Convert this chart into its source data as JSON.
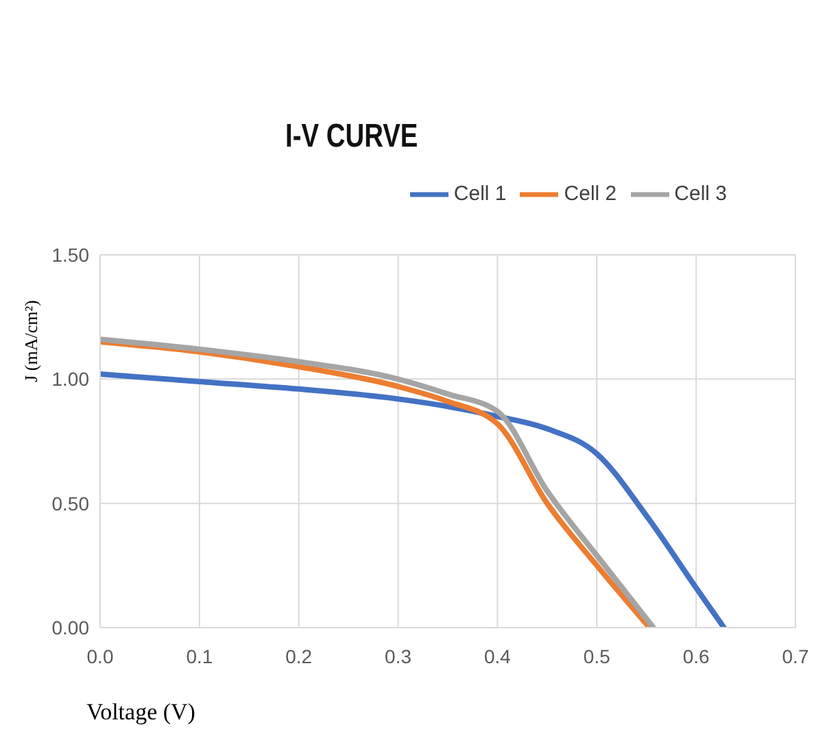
{
  "chart_data": {
    "type": "line",
    "title": "I-V CURVE",
    "xlabel": "Voltage (V)",
    "ylabel": "J (mA/cm²)",
    "series": [
      {
        "name": "Cell 1",
        "color": "#4472c4",
        "x": [
          0,
          0.1,
          0.2,
          0.3,
          0.35,
          0.4,
          0.45,
          0.5,
          0.55,
          0.6,
          0.628
        ],
        "values": [
          1.02,
          0.99,
          0.96,
          0.92,
          0.89,
          0.85,
          0.8,
          0.7,
          0.45,
          0.16,
          0
        ]
      },
      {
        "name": "Cell 2",
        "color": "#ed7d31",
        "x": [
          0,
          0.1,
          0.2,
          0.3,
          0.35,
          0.4,
          0.45,
          0.5,
          0.553
        ],
        "values": [
          1.15,
          1.11,
          1.05,
          0.97,
          0.91,
          0.82,
          0.5,
          0.25,
          0
        ]
      },
      {
        "name": "Cell 3",
        "color": "#a5a5a5",
        "x": [
          0,
          0.1,
          0.2,
          0.3,
          0.35,
          0.4,
          0.45,
          0.5,
          0.557
        ],
        "values": [
          1.16,
          1.12,
          1.07,
          1.0,
          0.94,
          0.87,
          0.55,
          0.29,
          0
        ]
      }
    ],
    "xlim": [
      0,
      0.7
    ],
    "xticks": [
      {
        "value": 0,
        "label": "0.0"
      },
      {
        "value": 0.1,
        "label": "0.1"
      },
      {
        "value": 0.2,
        "label": "0.2"
      },
      {
        "value": 0.3,
        "label": "0.3"
      },
      {
        "value": 0.4,
        "label": "0.4"
      },
      {
        "value": 0.5,
        "label": "0.5"
      },
      {
        "value": 0.6,
        "label": "0.6"
      },
      {
        "value": 0.7,
        "label": "0.7"
      }
    ],
    "ylim": [
      0,
      1.5
    ],
    "yticks": [
      {
        "value": 0,
        "label": "0.00"
      },
      {
        "value": 0.5,
        "label": "0.50"
      },
      {
        "value": 1,
        "label": "1.00"
      },
      {
        "value": 1.5,
        "label": "1.50"
      }
    ],
    "grid": true,
    "legend": "top right",
    "marker": "none",
    "line_style": "solid"
  }
}
